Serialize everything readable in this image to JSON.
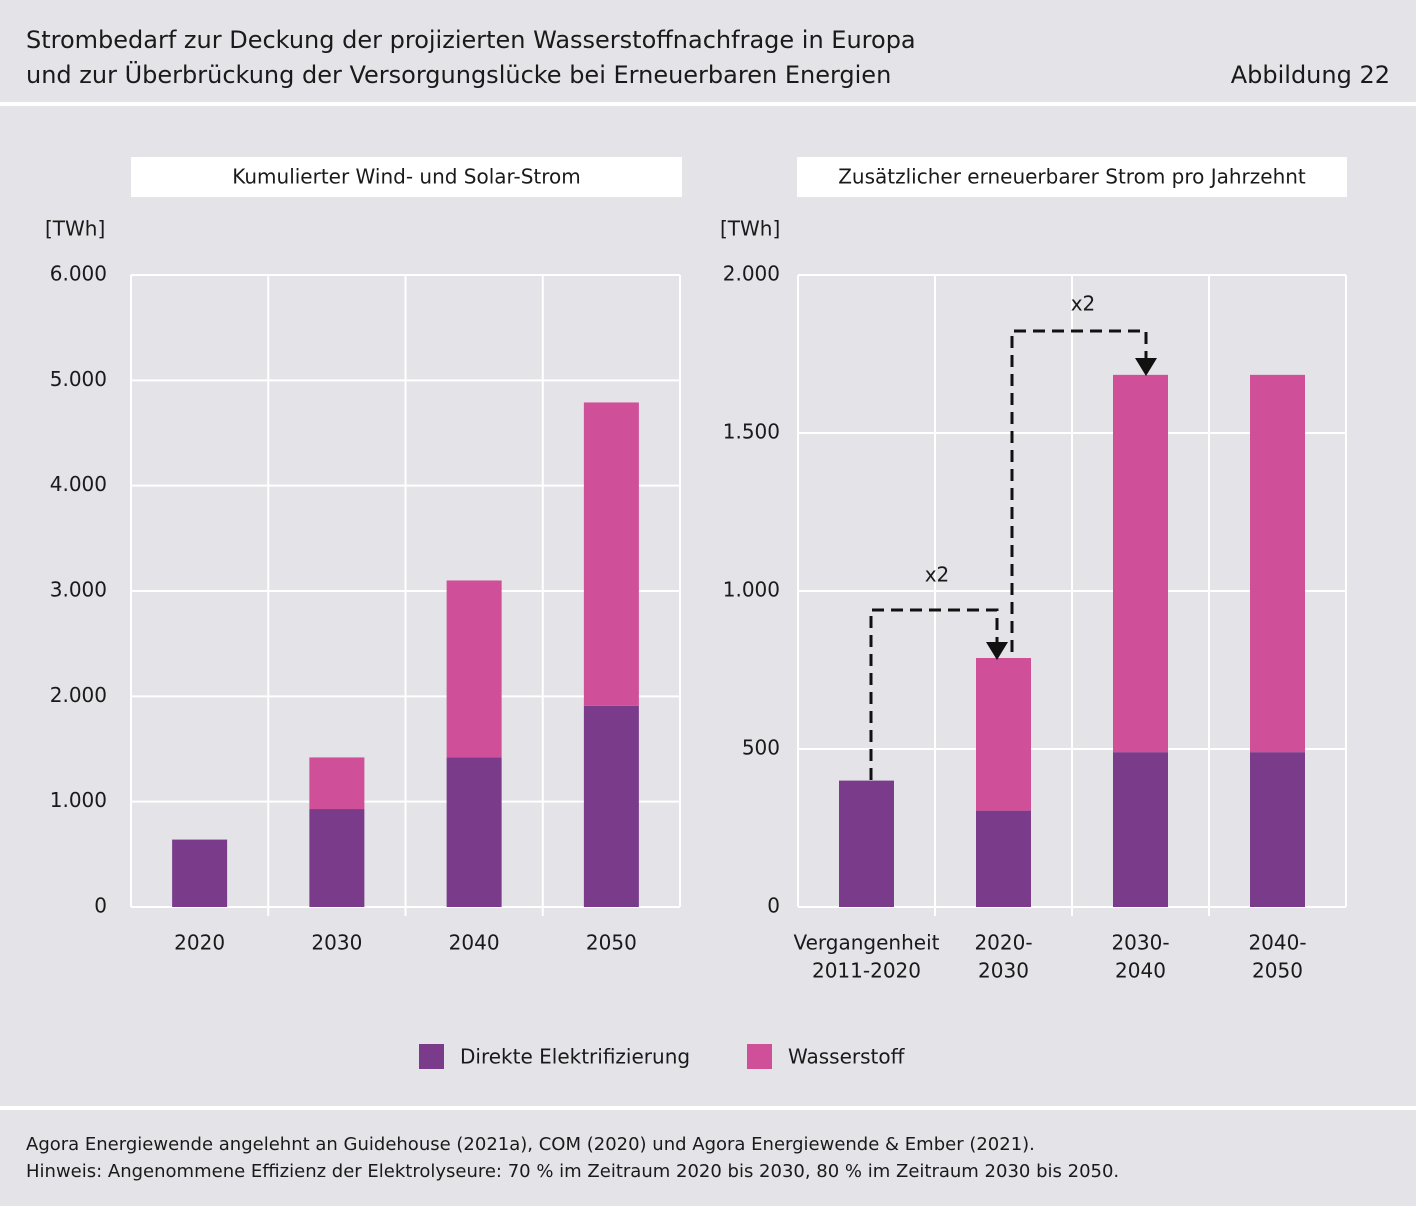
{
  "header": {
    "title_lines": [
      "Strombedarf zur Deckung der projizierten Wasserstoffnachfrage in Europa",
      "und zur Überbrückung der Versorgungslücke bei Erneuerbaren Energien"
    ],
    "figure_label": "Abbildung 22"
  },
  "chart_data": [
    {
      "type": "bar",
      "stacked": true,
      "title": "Kumulierter Wind- und Solar-Strom",
      "y_label": "[TWh]",
      "grid": true,
      "categories": [
        [
          "2020"
        ],
        [
          "2030"
        ],
        [
          "2040"
        ],
        [
          "2050"
        ]
      ],
      "series": [
        {
          "name": "Direkte Elektrifizierung",
          "color": "#7a3b8a",
          "values": [
            640,
            930,
            1420,
            1910
          ]
        },
        {
          "name": "Wasserstoff",
          "color": "#cf4f98",
          "values": [
            0,
            490,
            1680,
            2880
          ]
        }
      ],
      "ylim": [
        0,
        6000
      ],
      "yticks": [
        0,
        {
          "value": 1000,
          "label": "1.000"
        },
        {
          "value": 2000,
          "label": "2.000"
        },
        {
          "value": 3000,
          "label": "3.000"
        },
        {
          "value": 4000,
          "label": "4.000"
        },
        {
          "value": 5000,
          "label": "5.000"
        },
        {
          "value": 6000,
          "label": "6.000"
        }
      ]
    },
    {
      "type": "bar",
      "stacked": true,
      "title": "Zusätzlicher erneuerbarer Strom pro Jahrzehnt",
      "y_label": "[TWh]",
      "grid": true,
      "categories": [
        [
          "Vergangenheit",
          "2011-2020"
        ],
        [
          "2020-",
          "2030"
        ],
        [
          "2030-",
          "2040"
        ],
        [
          "2040-",
          "2050"
        ]
      ],
      "series": [
        {
          "name": "Direkte Elektrifizierung",
          "color": "#7a3b8a",
          "values": [
            400,
            305,
            490,
            490
          ]
        },
        {
          "name": "Wasserstoff",
          "color": "#cf4f98",
          "values": [
            0,
            483,
            1194,
            1194
          ]
        }
      ],
      "ylim": [
        0,
        2000
      ],
      "yticks": [
        0,
        500,
        {
          "value": 1000,
          "label": "1.000"
        },
        {
          "value": 1500,
          "label": "1.500"
        },
        {
          "value": 2000,
          "label": "2.000"
        }
      ],
      "annotations": [
        "x2",
        "x2"
      ]
    }
  ],
  "footer": {
    "source": "Agora Energiewende angelehnt an Guidehouse (2021a), COM (2020) und Agora Energiewende & Ember (2021).",
    "note": "Hinweis: Angenommene Effizienz der Elektrolyseure: 70 % im Zeitraum 2020 bis 2030, 80 % im Zeitraum 2030 bis 2050."
  }
}
